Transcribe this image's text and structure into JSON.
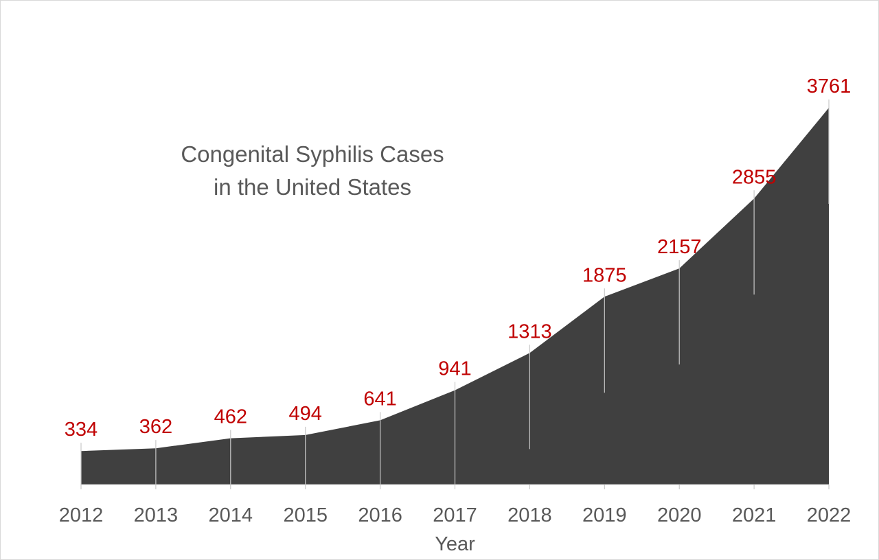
{
  "chart_data": {
    "type": "area",
    "title_line1": "Congenital Syphilis Cases",
    "title_line2": "in the United States",
    "xlabel": "Year",
    "ylabel": "",
    "categories": [
      "2012",
      "2013",
      "2014",
      "2015",
      "2016",
      "2017",
      "2018",
      "2019",
      "2020",
      "2021",
      "2022"
    ],
    "values": [
      334,
      362,
      462,
      494,
      641,
      941,
      1313,
      1875,
      2157,
      2855,
      3761
    ],
    "ylim": [
      0,
      3761
    ],
    "grid": false,
    "colors": {
      "area": "#404040",
      "data_label": "#c00000",
      "text": "#595959",
      "axis": "#bfbfbf"
    }
  }
}
